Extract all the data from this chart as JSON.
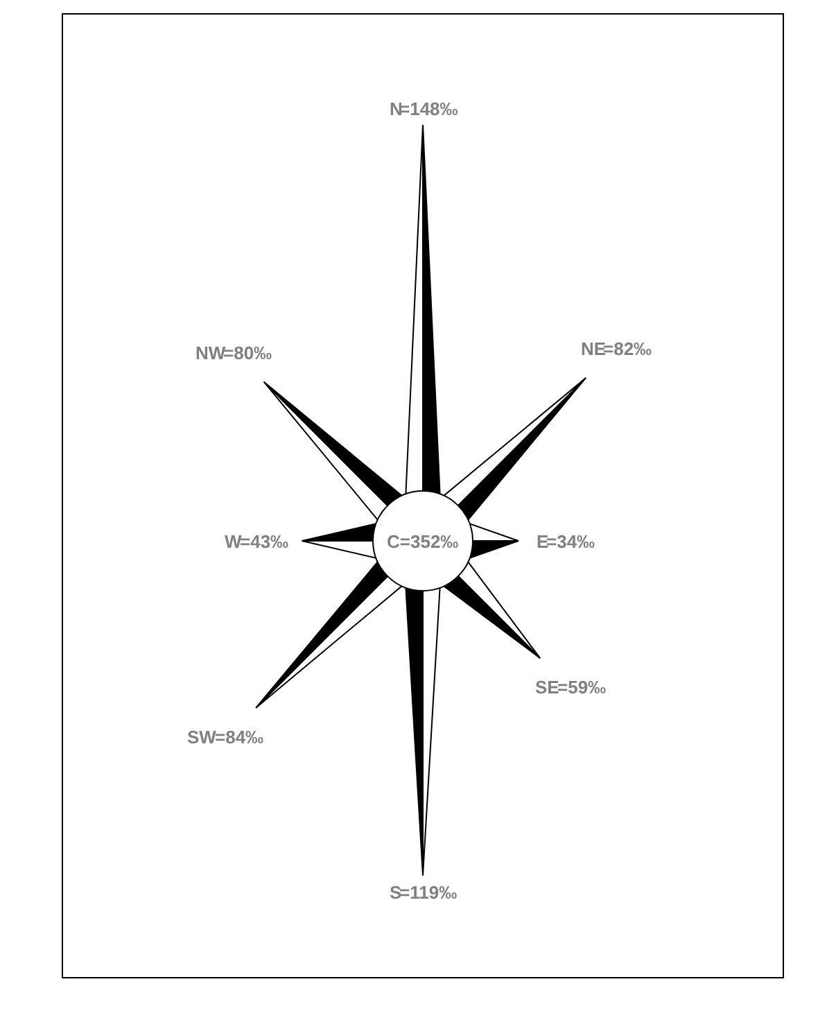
{
  "chart_data": {
    "type": "other",
    "categories": [
      "N",
      "NE",
      "E",
      "SE",
      "S",
      "SW",
      "W",
      "NW"
    ],
    "values": [
      148,
      82,
      34,
      59,
      119,
      84,
      43,
      80
    ],
    "value_labels": [
      "=148‰",
      "=82‰",
      "=34‰",
      "=59‰",
      "=119‰",
      "=84‰",
      "=43‰",
      "=80‰"
    ],
    "color": "#000000",
    "annotations": [
      "C=352‰"
    ]
  }
}
